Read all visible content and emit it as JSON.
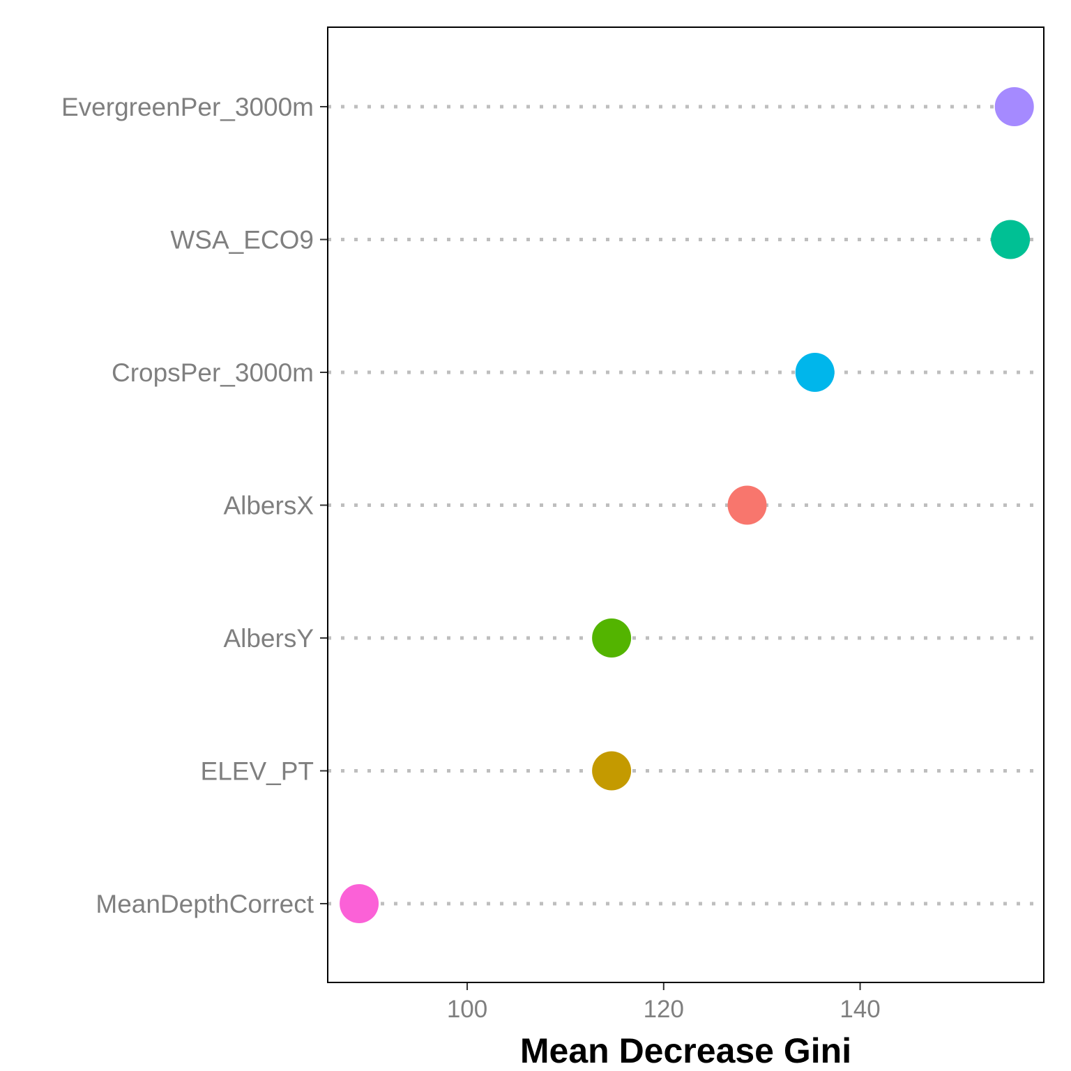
{
  "chart_data": {
    "type": "scatter",
    "title": "",
    "xlabel": "Mean Decrease Gini",
    "ylabel": "",
    "xlim": [
      85.8,
      158.7
    ],
    "xticks": [
      100,
      120,
      140
    ],
    "grid": "horizontal-dotted",
    "legend": "none",
    "categories": [
      "EvergreenPer_3000m",
      "WSA_ECO9",
      "CropsPer_3000m",
      "AlbersX",
      "AlbersY",
      "ELEV_PT",
      "MeanDepthCorrect"
    ],
    "values": [
      155.7,
      155.3,
      135.4,
      128.5,
      114.7,
      114.7,
      89.0
    ],
    "colors": [
      "#a58aff",
      "#00c094",
      "#00b6eb",
      "#f8766d",
      "#53b400",
      "#c49a00",
      "#fb61d7"
    ]
  }
}
